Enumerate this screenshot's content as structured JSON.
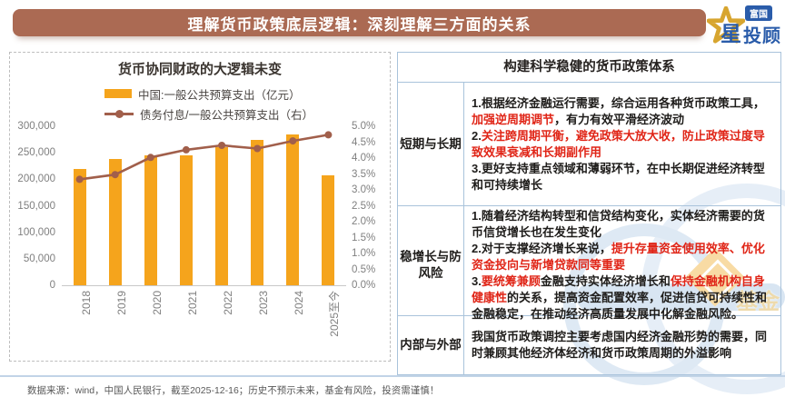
{
  "header": {
    "title": "理解货币政策底层逻辑：深刻理解三方面的关系",
    "logo": {
      "badge": "富国",
      "star_char": "星",
      "name": "投顾"
    }
  },
  "chart_data": {
    "type": "bar",
    "title": "货币协同财政的大逻辑未变",
    "categories": [
      "2018",
      "2019",
      "2020",
      "2021",
      "2022",
      "2023",
      "2024",
      "2025至今"
    ],
    "series": [
      {
        "name": "中国:一般公共预算支出（亿元）",
        "kind": "bar",
        "axis": "left",
        "color": "#F5A41C",
        "values": [
          220000,
          239000,
          245000,
          246000,
          261000,
          275000,
          285000,
          207000
        ]
      },
      {
        "name": "债务付息/一般公共预算支出（右）",
        "kind": "line",
        "axis": "right",
        "color": "#A15F4B",
        "values": [
          3.33,
          3.48,
          4.02,
          4.26,
          4.4,
          4.3,
          4.54,
          4.73
        ]
      }
    ],
    "left_axis": {
      "min": 0,
      "max": 300000,
      "step": 50000
    },
    "right_axis": {
      "min": 0,
      "max": 5,
      "step": 0.5,
      "suffix": "%"
    },
    "grid": "off",
    "legend_position": "top"
  },
  "right_panel": {
    "title": "构建科学稳健的货币政策体系",
    "rows": [
      {
        "label": "短期与长期",
        "items": [
          [
            {
              "t": "1.根据经济金融运行需要，综合运用各种货币政策工具，",
              "red": false
            },
            {
              "t": "加强逆周期调节",
              "red": true
            },
            {
              "t": "，有力有效平滑经济波动",
              "red": false
            }
          ],
          [
            {
              "t": "2.",
              "red": false
            },
            {
              "t": "关注跨周期平衡，避免政策大放大收，防止政策过度导致效果衰减和长期副作用",
              "red": true
            }
          ],
          [
            {
              "t": "3.更好支持重点领域和薄弱环节，在中长期促进经济转型和可持续增长",
              "red": false
            }
          ]
        ]
      },
      {
        "label": "稳增长与防风险",
        "items": [
          [
            {
              "t": "1.随着经济结构转型和信贷结构变化，实体经济需要的货币信贷增长也在发生变化",
              "red": false
            }
          ],
          [
            {
              "t": "2.对于支撑经济增长来说，",
              "red": false
            },
            {
              "t": "提升存量资金使用效率、优化资金投向与新增贷款同等重要",
              "red": true
            }
          ],
          [
            {
              "t": "3.",
              "red": false
            },
            {
              "t": "要统筹兼顾",
              "red": true
            },
            {
              "t": "金融支持实体经济增长和",
              "red": false
            },
            {
              "t": "保持金融机构自身健康性",
              "red": true
            },
            {
              "t": "的关系，提高资金配置效率，促进信贷可持续性和金融稳定，在推动经济高质量发展中化解金融风险。",
              "red": false
            }
          ]
        ]
      },
      {
        "label": "内部与外部",
        "items": [
          [
            {
              "t": "我国货币政策调控主要考虑国内经济金融形势的需要，同时兼顾其他经济体经济和货币政策周期的外溢影响",
              "red": false
            }
          ]
        ]
      }
    ]
  },
  "footer": {
    "disclaimer": "数据来源：wind，中国人民银行，截至2025-12-16；历史不预示未来，基金有风险，投资需谨慎！"
  },
  "watermark": {
    "text": "基金"
  },
  "colors": {
    "title_bar": "#AB6A53",
    "bar": "#F5A41C",
    "line": "#A15F4B",
    "highlight_red": "#E02517",
    "table_border": "#A9C3DB",
    "logo_blue": "#2A5CAA",
    "logo_gold": "#D7A52F"
  }
}
